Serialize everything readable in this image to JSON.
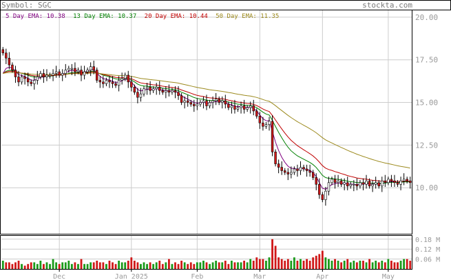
{
  "header": {
    "symbol_label": "Symbol: SGC",
    "site": "stockta.com"
  },
  "ema_legend": [
    {
      "label": "5 Day EMA:",
      "value": "10.38",
      "color": "#800080"
    },
    {
      "label": "13 Day EMA:",
      "value": "10.37",
      "color": "#008000"
    },
    {
      "label": "20 Day EMA:",
      "value": "10.44",
      "color": "#c00000"
    },
    {
      "label": "50 Day EMA:",
      "value": "11.35",
      "color": "#9c8a1e"
    }
  ],
  "colors": {
    "up": "#ffffff",
    "down": "#d01818",
    "vol_up": "#1a9a1a",
    "vol_down": "#d01818",
    "grid": "#cccccc",
    "axis_text": "#9a9a9a"
  },
  "chart_data": {
    "type": "candlestick",
    "price_axis": {
      "ticks": [
        "20.00",
        "17.50",
        "15.00",
        "12.50",
        "10.00"
      ],
      "ylim": [
        7.3,
        20.4
      ]
    },
    "volume_axis": {
      "ticks": [
        "0.18 M",
        "0.12 M",
        "0.06 M"
      ],
      "ylim": [
        0,
        0.2
      ]
    },
    "x_ticks": [
      {
        "label": "Dec",
        "index": 18
      },
      {
        "label": "Jan 2025",
        "index": 41
      },
      {
        "label": "Feb",
        "index": 62
      },
      {
        "label": "Mar",
        "index": 82
      },
      {
        "label": "Apr",
        "index": 102
      },
      {
        "label": "May",
        "index": 123
      }
    ],
    "close": [
      17.9,
      17.6,
      17.2,
      16.9,
      16.5,
      16.2,
      16.5,
      16.4,
      16.2,
      16.1,
      16.3,
      16.5,
      16.7,
      16.5,
      16.6,
      16.6,
      16.7,
      16.8,
      16.6,
      16.7,
      16.9,
      17.0,
      17.0,
      16.8,
      16.9,
      16.6,
      16.8,
      16.9,
      17.1,
      16.9,
      16.3,
      16.2,
      16.1,
      16.3,
      16.2,
      16.1,
      16.0,
      16.3,
      16.4,
      16.6,
      16.2,
      15.9,
      15.6,
      15.3,
      15.5,
      15.8,
      15.9,
      15.7,
      15.8,
      15.9,
      15.7,
      15.6,
      15.7,
      15.6,
      15.7,
      15.6,
      15.4,
      15.0,
      15.1,
      15.0,
      14.9,
      14.8,
      14.9,
      15.0,
      15.1,
      14.8,
      15.0,
      15.1,
      15.2,
      15.0,
      15.1,
      14.9,
      14.7,
      14.8,
      14.6,
      14.7,
      14.8,
      14.6,
      14.7,
      14.8,
      14.5,
      14.2,
      13.8,
      13.6,
      13.7,
      13.9,
      12.1,
      11.4,
      11.2,
      11.0,
      10.9,
      10.8,
      10.9,
      11.1,
      11.0,
      11.2,
      11.1,
      11.0,
      10.9,
      10.6,
      10.2,
      9.6,
      9.3,
      9.8,
      10.3,
      10.5,
      10.3,
      10.4,
      10.2,
      10.3,
      10.1,
      10.2,
      10.2,
      10.1,
      10.3,
      10.2,
      10.4,
      10.1,
      10.2,
      10.3,
      10.1,
      10.4,
      10.3,
      10.5,
      10.4,
      10.3,
      10.2,
      10.4,
      10.5,
      10.4,
      10.3
    ],
    "volume": [
      0.05,
      0.04,
      0.04,
      0.03,
      0.04,
      0.05,
      0.03,
      0.02,
      0.03,
      0.04,
      0.04,
      0.03,
      0.05,
      0.03,
      0.04,
      0.03,
      0.06,
      0.04,
      0.03,
      0.04,
      0.04,
      0.05,
      0.03,
      0.04,
      0.03,
      0.06,
      0.03,
      0.03,
      0.04,
      0.04,
      0.05,
      0.04,
      0.04,
      0.03,
      0.05,
      0.04,
      0.03,
      0.05,
      0.04,
      0.04,
      0.05,
      0.07,
      0.05,
      0.04,
      0.03,
      0.04,
      0.03,
      0.04,
      0.03,
      0.04,
      0.05,
      0.03,
      0.04,
      0.06,
      0.03,
      0.04,
      0.03,
      0.05,
      0.04,
      0.03,
      0.04,
      0.03,
      0.04,
      0.04,
      0.05,
      0.04,
      0.03,
      0.04,
      0.05,
      0.04,
      0.04,
      0.05,
      0.03,
      0.05,
      0.04,
      0.04,
      0.04,
      0.05,
      0.04,
      0.06,
      0.05,
      0.07,
      0.06,
      0.06,
      0.05,
      0.07,
      0.18,
      0.14,
      0.07,
      0.06,
      0.05,
      0.06,
      0.05,
      0.07,
      0.05,
      0.06,
      0.05,
      0.06,
      0.05,
      0.07,
      0.08,
      0.09,
      0.11,
      0.07,
      0.06,
      0.05,
      0.06,
      0.05,
      0.04,
      0.05,
      0.06,
      0.04,
      0.05,
      0.04,
      0.05,
      0.05,
      0.04,
      0.06,
      0.04,
      0.05,
      0.04,
      0.05,
      0.04,
      0.06,
      0.05,
      0.04,
      0.04,
      0.05,
      0.06,
      0.06,
      0.05
    ]
  }
}
